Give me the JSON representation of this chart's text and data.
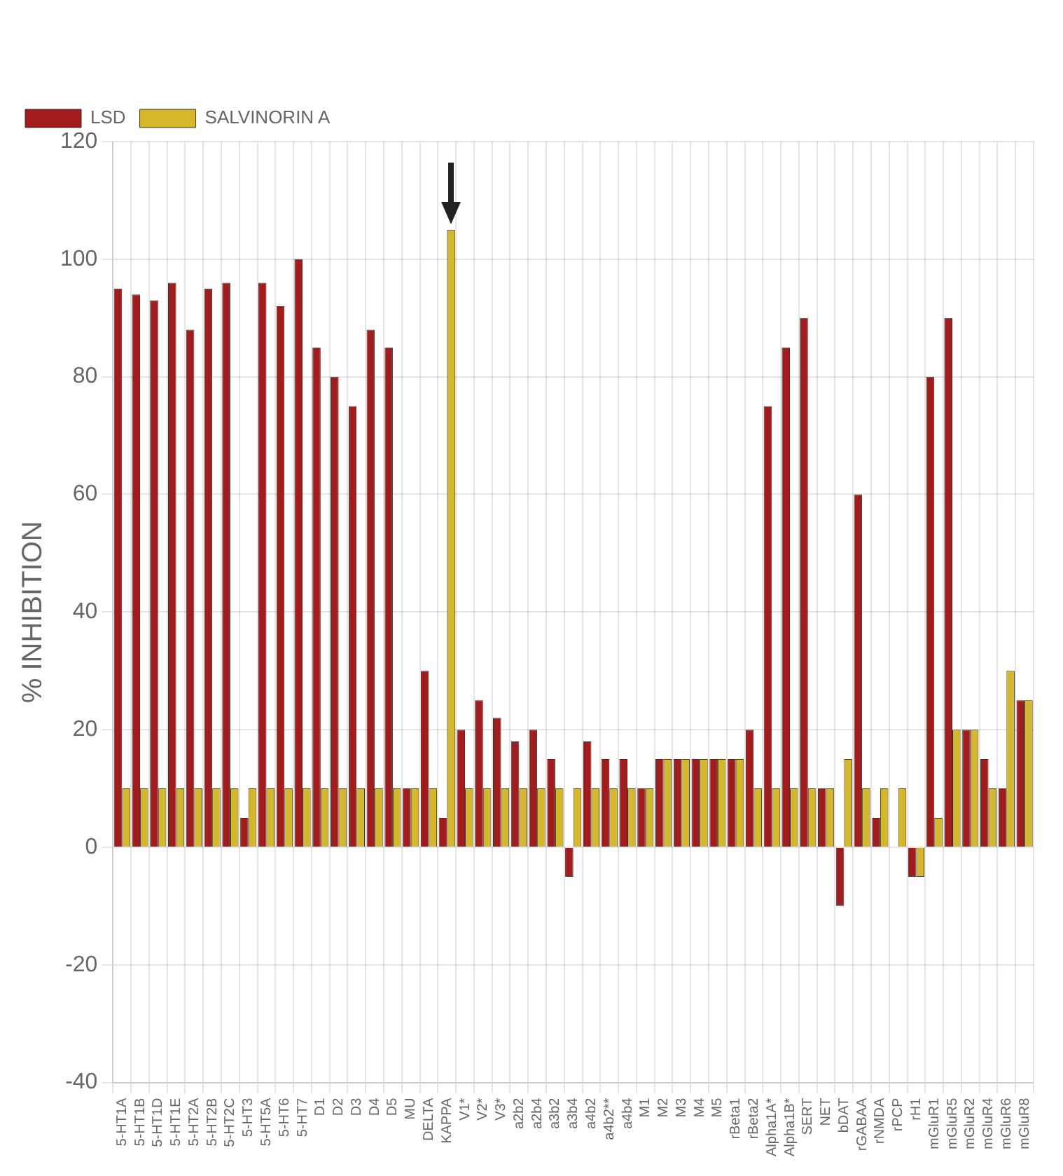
{
  "chart_data": {
    "type": "bar",
    "ylabel": "% INHIBITION",
    "categories": [
      "5-HT1A",
      "5-HT1B",
      "5-HT1D",
      "5-HT1E",
      "5-HT2A",
      "5-HT2B",
      "5-HT2C",
      "5-HT3",
      "5-HT5A",
      "5-HT6",
      "5-HT7",
      "D1",
      "D2",
      "D3",
      "D4",
      "D5",
      "MU",
      "DELTA",
      "KAPPA",
      "V1*",
      "V2*",
      "V3*",
      "a2b2",
      "a2b4",
      "a3b2",
      "a3b4",
      "a4b2",
      "a4b2**",
      "a4b4",
      "M1",
      "M2",
      "M3",
      "M4",
      "M5",
      "rBeta1",
      "rBeta2",
      "Alpha1A*",
      "Alpha1B*",
      "SERT",
      "NET",
      "bDAT",
      "rGABAA",
      "rNMDA",
      "rPCP",
      "rH1",
      "mGluR1",
      "mGluR5",
      "mGluR2",
      "mGluR4",
      "mGluR6",
      "mGluR8"
    ],
    "series": [
      {
        "name": "LSD",
        "color": "#a41b1b",
        "values": [
          95,
          94,
          93,
          96,
          88,
          95,
          96,
          5,
          96,
          92,
          100,
          85,
          80,
          75,
          88,
          85,
          10,
          30,
          5,
          20,
          25,
          22,
          18,
          20,
          15,
          -5,
          18,
          15,
          15,
          10,
          15,
          15,
          15,
          15,
          15,
          20,
          75,
          85,
          90,
          10,
          -10,
          60,
          5,
          0,
          -5,
          80,
          90,
          20,
          15,
          10,
          25
        ]
      },
      {
        "name": "SALVINORIN A",
        "color": "#d4b82a",
        "values": [
          10,
          10,
          10,
          10,
          10,
          10,
          10,
          10,
          10,
          10,
          10,
          10,
          10,
          10,
          10,
          10,
          10,
          10,
          105,
          10,
          10,
          10,
          10,
          10,
          10,
          10,
          10,
          10,
          10,
          10,
          15,
          15,
          15,
          15,
          15,
          10,
          10,
          10,
          10,
          10,
          15,
          10,
          10,
          10,
          -5,
          5,
          20,
          20,
          10,
          30,
          25
        ]
      }
    ],
    "ylim": [
      -40,
      120
    ],
    "yticks": [
      -40,
      -20,
      0,
      20,
      40,
      60,
      80,
      100,
      120
    ],
    "grid": true,
    "legend": "top left"
  }
}
